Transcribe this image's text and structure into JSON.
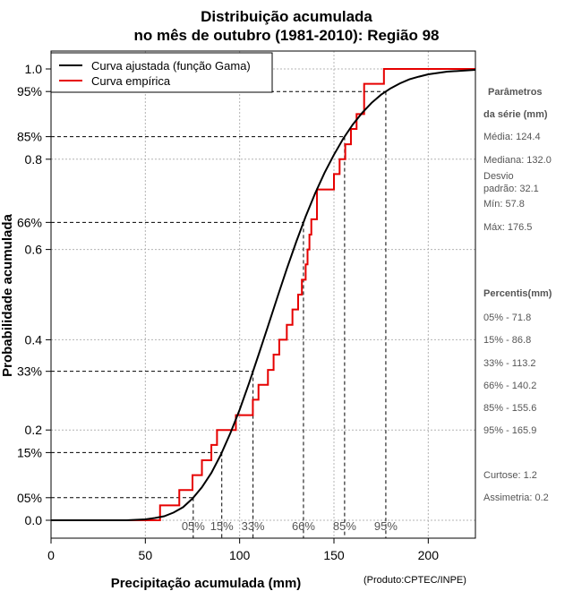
{
  "chart_data": {
    "type": "line",
    "title_line1": "Distribuição acumulada",
    "title_line2": "no mês de outubro (1981-2010): Região 98",
    "xlabel": "Precipitação acumulada (mm)",
    "ylabel": "Probabilidade acumulada",
    "credit": "(Produto:CPTEC/INPE)",
    "xlim": [
      0,
      225
    ],
    "ylim": [
      0,
      1
    ],
    "x_ticks": [
      0,
      50,
      100,
      150,
      200
    ],
    "y_ticks": [
      {
        "value": 0.0,
        "label": "0.0"
      },
      {
        "value": 0.2,
        "label": "0.2"
      },
      {
        "value": 0.4,
        "label": "0.4"
      },
      {
        "value": 0.6,
        "label": "0.6"
      },
      {
        "value": 0.8,
        "label": "0.8"
      },
      {
        "value": 1.0,
        "label": "1.0"
      }
    ],
    "y_percent_ticks": [
      {
        "value": 0.05,
        "label": "05%"
      },
      {
        "value": 0.15,
        "label": "15%"
      },
      {
        "value": 0.33,
        "label": "33%"
      },
      {
        "value": 0.66,
        "label": "66%"
      },
      {
        "value": 0.85,
        "label": "85%"
      },
      {
        "value": 0.95,
        "label": "95%"
      }
    ],
    "grid": true,
    "legend_position": "top-left",
    "series": [
      {
        "name": "Curva ajustada (função Gama)",
        "color": "#000000",
        "kind": "line",
        "x": [
          0,
          40,
          45,
          50,
          55,
          60,
          65,
          70,
          75,
          80,
          85,
          90,
          95,
          100,
          105,
          110,
          115,
          120,
          125,
          130,
          135,
          140,
          145,
          150,
          155,
          160,
          165,
          170,
          175,
          180,
          185,
          190,
          195,
          200,
          210,
          225
        ],
        "y": [
          0.0,
          0.0,
          0.001,
          0.002,
          0.005,
          0.009,
          0.017,
          0.029,
          0.048,
          0.073,
          0.105,
          0.145,
          0.192,
          0.245,
          0.304,
          0.366,
          0.43,
          0.494,
          0.557,
          0.617,
          0.673,
          0.724,
          0.77,
          0.81,
          0.846,
          0.877,
          0.903,
          0.925,
          0.943,
          0.957,
          0.968,
          0.977,
          0.983,
          0.988,
          0.994,
          0.998
        ]
      },
      {
        "name": "Curva empírica",
        "color": "#e60000",
        "kind": "step",
        "x": [
          57.8,
          68,
          75,
          80,
          85,
          88,
          98,
          107,
          110,
          115,
          118,
          121,
          125,
          128,
          131,
          133,
          135,
          136,
          137,
          138,
          141,
          150,
          153,
          156,
          159,
          162,
          166,
          176.5
        ],
        "y": [
          0.033,
          0.067,
          0.1,
          0.133,
          0.167,
          0.2,
          0.233,
          0.267,
          0.3,
          0.333,
          0.367,
          0.4,
          0.433,
          0.467,
          0.5,
          0.533,
          0.567,
          0.6,
          0.633,
          0.667,
          0.733,
          0.767,
          0.8,
          0.833,
          0.867,
          0.9,
          0.967,
          1.0
        ]
      }
    ],
    "percentile_x_labels": [
      {
        "value": 71.8,
        "label": "05%"
      },
      {
        "value": 86.8,
        "label": "15%"
      },
      {
        "value": 113.2,
        "label": "33%"
      },
      {
        "value": 140.2,
        "label": "66%"
      },
      {
        "value": 155.6,
        "label": "85%"
      },
      {
        "value": 165.9,
        "label": "95%"
      }
    ]
  },
  "side_panel": {
    "params_title_1": "Parâmetros",
    "params_title_2": "da série (mm)",
    "media": "Média: 124.4",
    "mediana": "Mediana: 132.0",
    "desvio_1": "Desvio",
    "desvio_2": "padrão: 32.1",
    "min": "Mín: 57.8",
    "max": "Máx: 176.5",
    "percentis_title": "Percentis(mm)",
    "p05": "05% - 71.8",
    "p15": "15% - 86.8",
    "p33": "33% - 113.2",
    "p66": "66% - 140.2",
    "p85": "85% - 155.6",
    "p95": "95% - 165.9",
    "curtose": "Curtose: 1.2",
    "assimetria": "Assimetria: 0.2"
  }
}
